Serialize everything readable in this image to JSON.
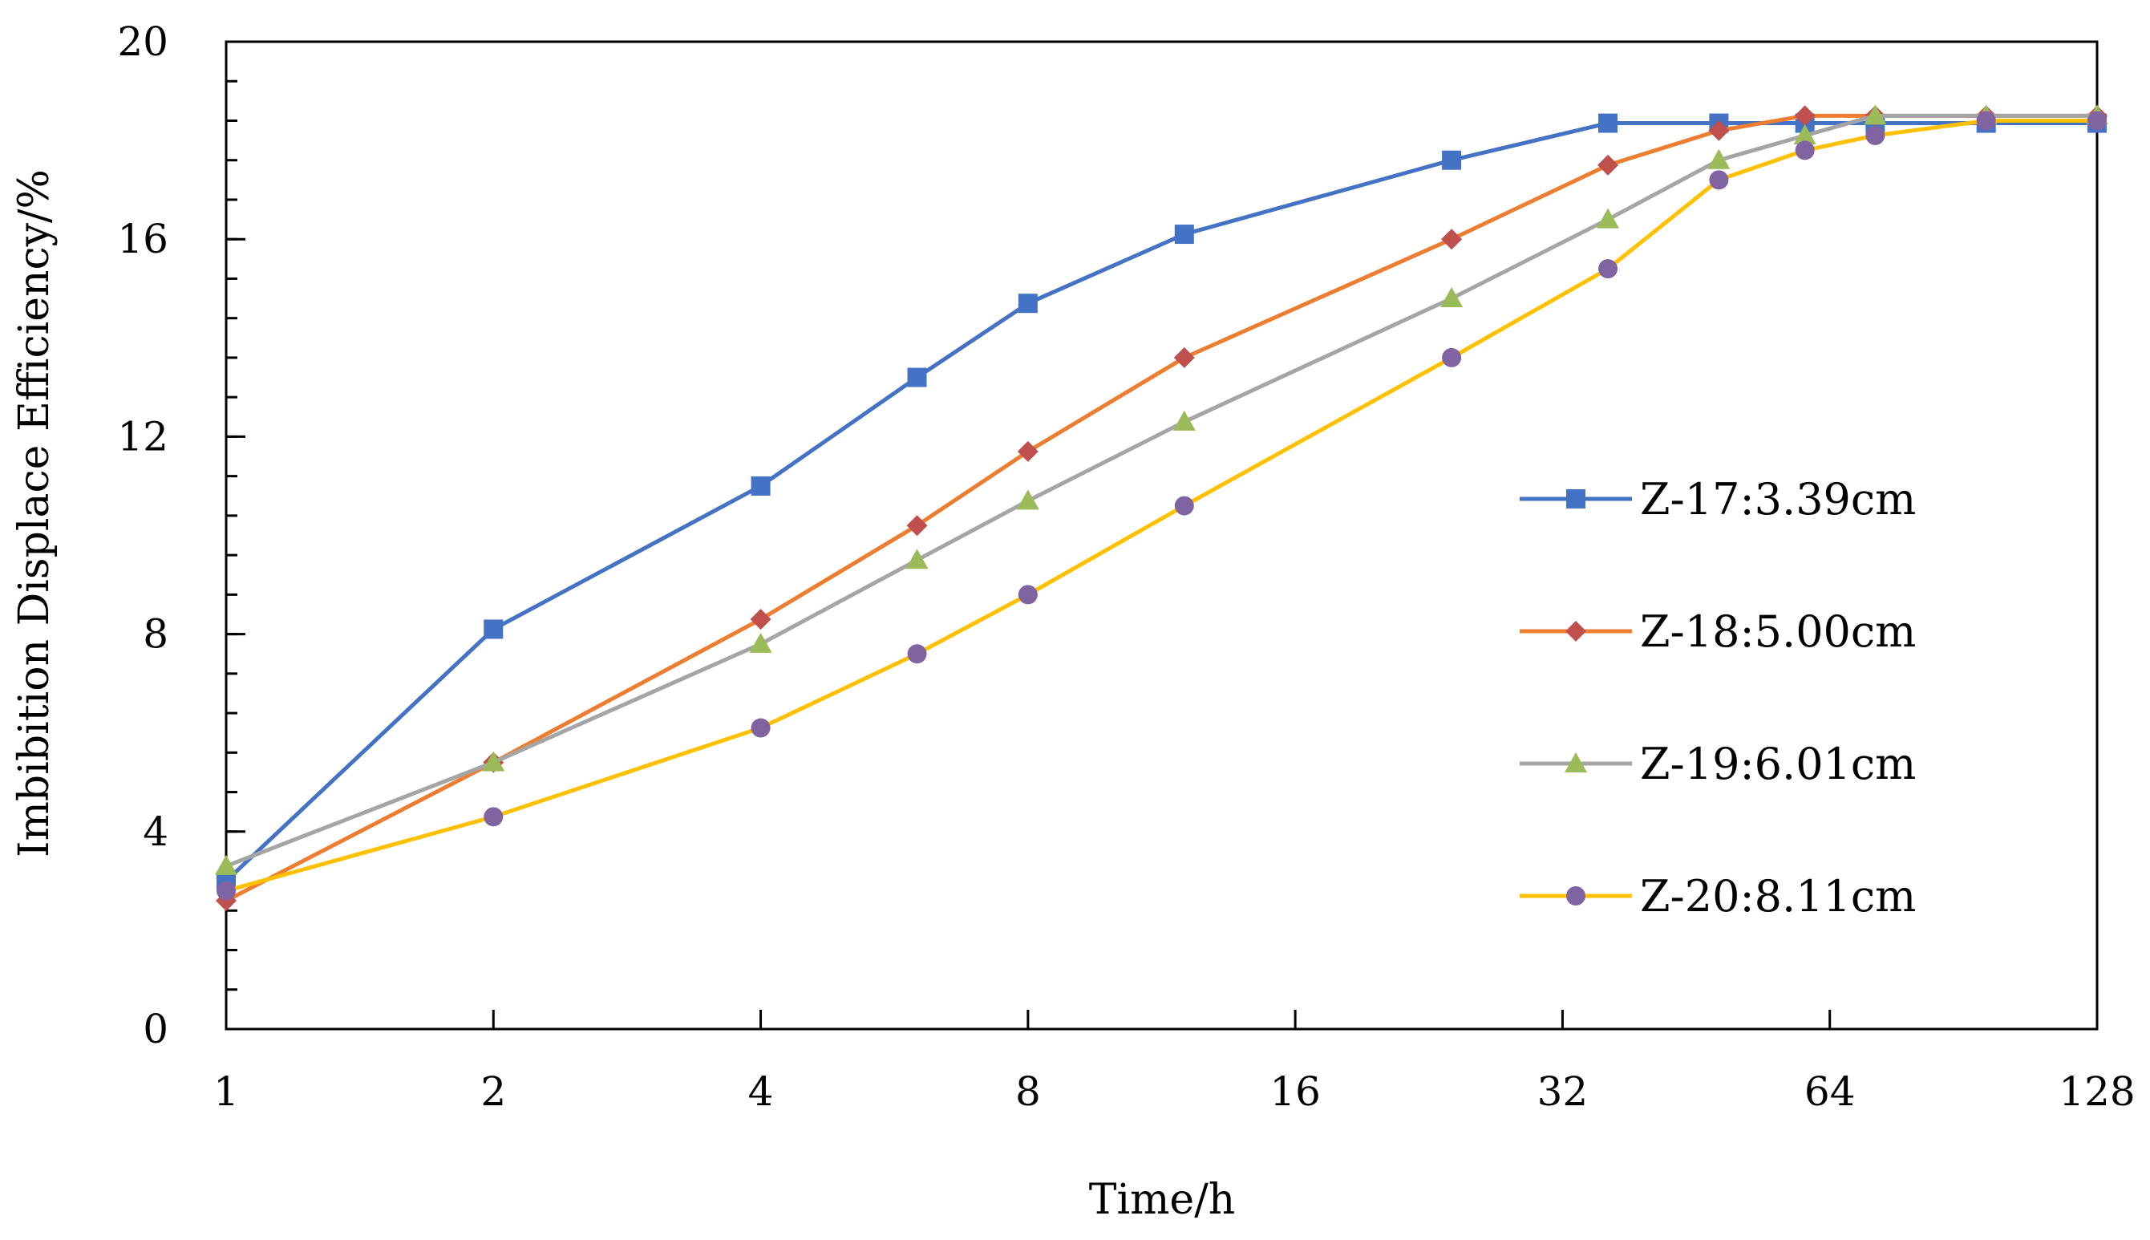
{
  "chart_data": {
    "type": "line",
    "title": "",
    "xlabel": "Time/h",
    "ylabel": "Imbibition Displace Efficiency/%",
    "x_scale": "log2",
    "xlim": [
      1,
      128
    ],
    "ylim": [
      0,
      20
    ],
    "x_ticks": [
      1,
      2,
      4,
      8,
      16,
      32,
      64,
      128
    ],
    "x_tick_labels": [
      "1",
      "2",
      "4",
      "8",
      "16",
      "32",
      "64",
      "128"
    ],
    "y_ticks": [
      0,
      4,
      8,
      12,
      16,
      20
    ],
    "y_tick_labels": [
      "0",
      "4",
      "8",
      "12",
      "16",
      "20"
    ],
    "y_minor_step": 0.8,
    "grid": false,
    "legend_position": "right",
    "series": [
      {
        "name": "Z-17:3.39cm",
        "color": "#4472C4",
        "marker": "square",
        "x": [
          1,
          2,
          4,
          6,
          8,
          12,
          24,
          36,
          48,
          60,
          72,
          96,
          128
        ],
        "y": [
          3.0,
          8.1,
          11.0,
          13.2,
          14.7,
          16.1,
          17.6,
          18.35,
          18.35,
          18.35,
          18.35,
          18.35,
          18.35
        ]
      },
      {
        "name": "Z-18:5.00cm",
        "color": "#ED7D31",
        "marker": "diamond",
        "x": [
          1,
          2,
          4,
          6,
          8,
          12,
          24,
          36,
          48,
          60,
          72,
          96,
          128
        ],
        "y": [
          2.6,
          5.4,
          8.3,
          10.2,
          11.7,
          13.6,
          16.0,
          17.5,
          18.2,
          18.5,
          18.5,
          18.5,
          18.5
        ]
      },
      {
        "name": "Z-19:6.01cm",
        "color": "#A5A5A5",
        "marker": "triangle",
        "x": [
          1,
          2,
          4,
          6,
          8,
          12,
          24,
          36,
          48,
          60,
          72,
          96,
          128
        ],
        "y": [
          3.3,
          5.4,
          7.8,
          9.5,
          10.7,
          12.3,
          14.8,
          16.4,
          17.6,
          18.1,
          18.5,
          18.5,
          18.5
        ]
      },
      {
        "name": "Z-20:8.11cm",
        "color": "#FFC000",
        "marker": "circle",
        "x": [
          1,
          2,
          4,
          6,
          8,
          12,
          24,
          36,
          48,
          60,
          72,
          96,
          128
        ],
        "y": [
          2.8,
          4.3,
          6.1,
          7.6,
          8.8,
          10.6,
          13.6,
          15.4,
          17.2,
          17.8,
          18.1,
          18.4,
          18.4
        ]
      }
    ]
  }
}
